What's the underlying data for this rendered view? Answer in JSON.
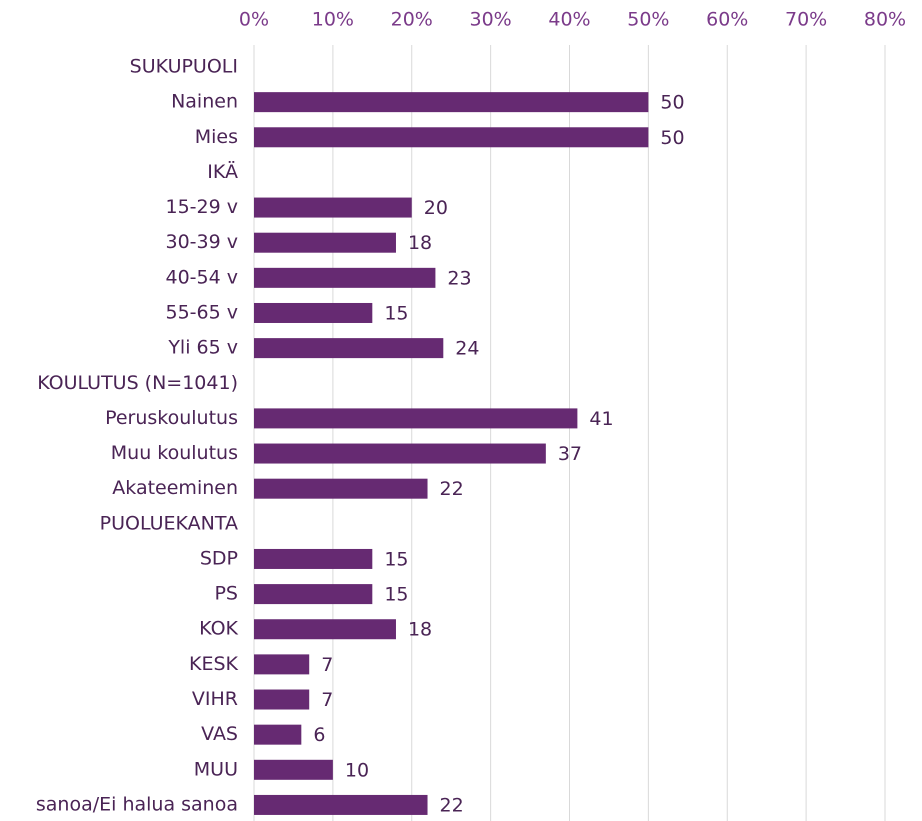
{
  "chart_data": {
    "type": "hbar",
    "categories": [
      "SUKUPUOLI",
      "Nainen",
      "Mies",
      "IKÄ",
      "15-29 v",
      "30-39 v",
      "40-54 v",
      "55-65 v",
      "Yli 65 v",
      "KOULUTUS (N=1041)",
      "Peruskoulutus",
      "Muu koulutus",
      "Akateeminen",
      "PUOLUEKANTA",
      "SDP",
      "PS",
      "KOK",
      "KESK",
      "VIHR",
      "VAS",
      "MUU",
      "sanoa/Ei halua sanoa"
    ],
    "values": [
      null,
      50,
      50,
      null,
      20,
      18,
      23,
      15,
      24,
      null,
      41,
      37,
      22,
      null,
      15,
      15,
      18,
      7,
      7,
      6,
      10,
      22
    ],
    "color": "#662a72",
    "xlim": [
      0,
      80
    ],
    "xticks": [
      {
        "value": 0,
        "label": "0%"
      },
      {
        "value": 10,
        "label": "10%"
      },
      {
        "value": 20,
        "label": "20%"
      },
      {
        "value": 30,
        "label": "30%"
      },
      {
        "value": 40,
        "label": "40%"
      },
      {
        "value": 50,
        "label": "50%"
      },
      {
        "value": 60,
        "label": "60%"
      },
      {
        "value": 70,
        "label": "70%"
      },
      {
        "value": 80,
        "label": "80%"
      }
    ],
    "grid": true
  }
}
